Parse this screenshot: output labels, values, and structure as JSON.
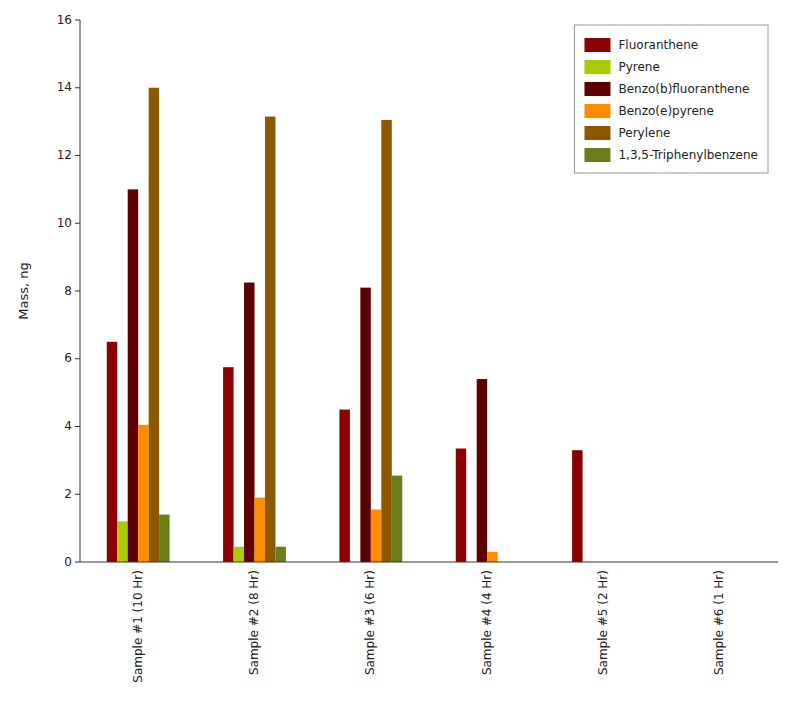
{
  "chart_data": {
    "type": "bar",
    "categories": [
      "Sample #1 (10 Hr)",
      "Sample #2 (8 Hr)",
      "Sample #3 (6 Hr)",
      "Sample #4 (4 Hr)",
      "Sample #5 (2 Hr)",
      "Sample #6 (1 Hr)"
    ],
    "series": [
      {
        "name": "Fluoranthene",
        "color": "#8B0000",
        "values": [
          6.5,
          5.75,
          4.5,
          3.35,
          3.3,
          0.0
        ]
      },
      {
        "name": "Pyrene",
        "color": "#AACC00",
        "values": [
          1.2,
          0.45,
          0.0,
          0.0,
          0.0,
          0.0
        ]
      },
      {
        "name": "Benzo(b)fluoranthene",
        "color": "#5C0000",
        "values": [
          11.0,
          8.25,
          8.1,
          5.4,
          0.0,
          0.0
        ]
      },
      {
        "name": "Benzo(e)pyrene",
        "color": "#FF8C00",
        "values": [
          4.05,
          1.9,
          1.55,
          0.3,
          0.0,
          0.0
        ]
      },
      {
        "name": "Perylene",
        "color": "#8B5A00",
        "values": [
          14.0,
          13.15,
          13.05,
          0.0,
          0.0,
          0.0
        ]
      },
      {
        "name": "1,3,5-Triphenylbenzene",
        "color": "#6B7C1A",
        "values": [
          1.4,
          0.45,
          2.55,
          0.0,
          0.0,
          0.0
        ]
      }
    ],
    "ylabel": "Mass, ng",
    "ylim": [
      0,
      16
    ],
    "yticks": [
      0,
      2,
      4,
      6,
      8,
      10,
      12,
      14,
      16
    ],
    "grid": false,
    "legend": "upper right"
  }
}
